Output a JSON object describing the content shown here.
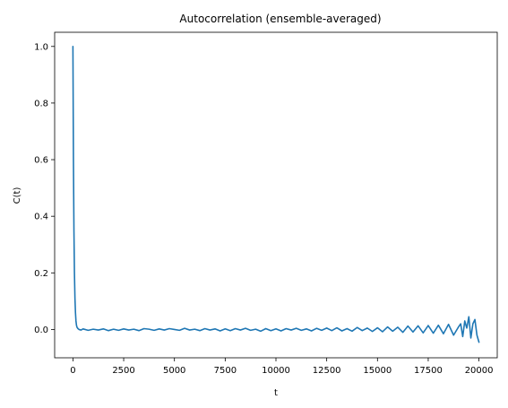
{
  "chart_data": {
    "type": "line",
    "title": "Autocorrelation (ensemble-averaged)",
    "xlabel": "t",
    "ylabel": "C(t)",
    "xlim": [
      -900,
      20900
    ],
    "ylim": [
      -0.1,
      1.05
    ],
    "xticks": [
      0,
      2500,
      5000,
      7500,
      10000,
      12500,
      15000,
      17500,
      20000
    ],
    "xtick_labels": [
      "0",
      "2500",
      "5000",
      "7500",
      "10000",
      "12500",
      "15000",
      "17500",
      "20000"
    ],
    "yticks": [
      0.0,
      0.2,
      0.4,
      0.6,
      0.8,
      1.0
    ],
    "ytick_labels": [
      "0.0",
      "0.2",
      "0.4",
      "0.6",
      "0.8",
      "1.0"
    ],
    "grid": false,
    "legend": false,
    "series": [
      {
        "color": "#1f77b4",
        "x": [
          0,
          25,
          50,
          75,
          100,
          125,
          150,
          175,
          200,
          250,
          300,
          400,
          500,
          750,
          1000,
          1250,
          1500,
          1750,
          2000,
          2250,
          2500,
          2750,
          3000,
          3250,
          3500,
          3750,
          4000,
          4250,
          4500,
          4750,
          5000,
          5250,
          5500,
          5750,
          6000,
          6250,
          6500,
          6750,
          7000,
          7250,
          7500,
          7750,
          8000,
          8250,
          8500,
          8750,
          9000,
          9250,
          9500,
          9750,
          10000,
          10250,
          10500,
          10750,
          11000,
          11250,
          11500,
          11750,
          12000,
          12250,
          12500,
          12750,
          13000,
          13250,
          13500,
          13750,
          14000,
          14250,
          14500,
          14750,
          15000,
          15250,
          15500,
          15750,
          16000,
          16250,
          16500,
          16750,
          17000,
          17250,
          17500,
          17750,
          18000,
          18250,
          18500,
          18750,
          19000,
          19100,
          19200,
          19300,
          19400,
          19500,
          19600,
          19700,
          19800,
          19900,
          20000
        ],
        "y": [
          1.0,
          0.6,
          0.35,
          0.2,
          0.11,
          0.06,
          0.03,
          0.015,
          0.008,
          0.003,
          0.0,
          -0.002,
          0.002,
          -0.003,
          0.001,
          -0.002,
          0.002,
          -0.004,
          0.001,
          -0.003,
          0.002,
          -0.002,
          0.001,
          -0.004,
          0.003,
          0.001,
          -0.003,
          0.002,
          -0.002,
          0.003,
          0.0,
          -0.003,
          0.004,
          -0.002,
          0.001,
          -0.004,
          0.003,
          -0.002,
          0.002,
          -0.005,
          0.002,
          -0.004,
          0.003,
          -0.002,
          0.004,
          -0.003,
          0.001,
          -0.006,
          0.003,
          -0.004,
          0.002,
          -0.005,
          0.003,
          -0.002,
          0.004,
          -0.003,
          0.002,
          -0.005,
          0.004,
          -0.003,
          0.005,
          -0.004,
          0.006,
          -0.005,
          0.003,
          -0.006,
          0.007,
          -0.004,
          0.005,
          -0.007,
          0.006,
          -0.008,
          0.009,
          -0.006,
          0.008,
          -0.01,
          0.012,
          -0.009,
          0.013,
          -0.012,
          0.014,
          -0.013,
          0.015,
          -0.015,
          0.018,
          -0.02,
          0.01,
          0.02,
          -0.025,
          0.03,
          0.005,
          0.045,
          -0.03,
          0.02,
          0.035,
          -0.02,
          -0.045
        ]
      }
    ]
  }
}
